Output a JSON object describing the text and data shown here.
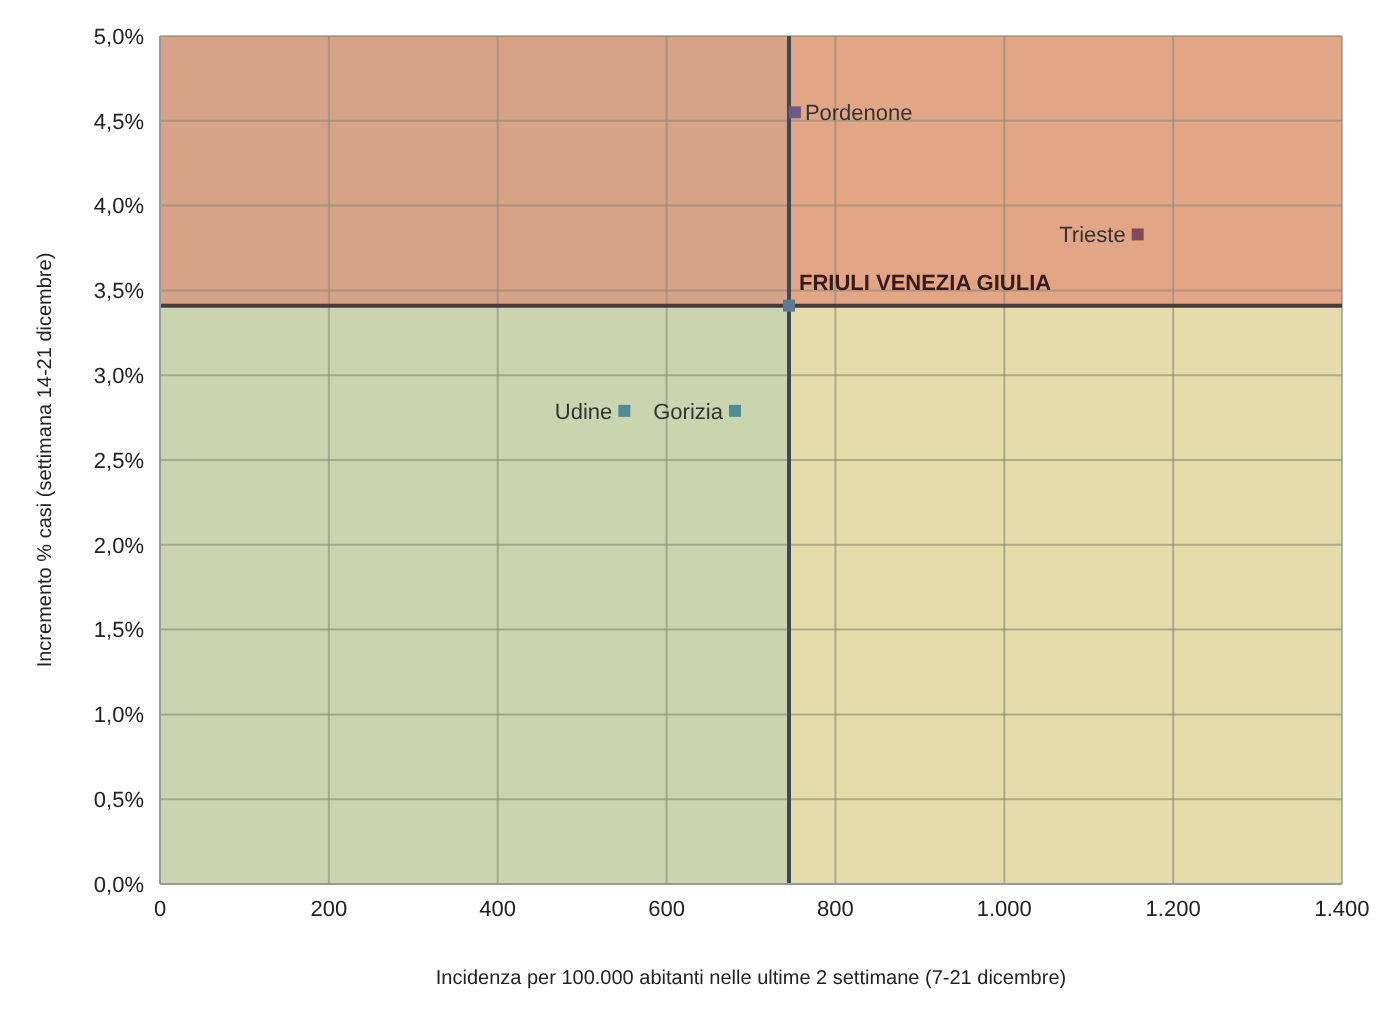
{
  "chart_data": {
    "type": "scatter",
    "xlabel": "Incidenza per 100.000 abitanti nelle ultime 2 settimane (7-21 dicembre)",
    "ylabel": "Incremento % casi (settimana 14-21 dicembre)",
    "series": [
      {
        "name": "FRIULI VENEZIA GIULIA",
        "color": "#5a7a96",
        "x": [
          745
        ],
        "values": [
          3.41
        ]
      },
      {
        "name": "Pordenone",
        "color": "#6e5a86",
        "x": [
          752
        ],
        "values": [
          4.55
        ]
      },
      {
        "name": "Trieste",
        "color": "#7e4a5c",
        "x": [
          1158
        ],
        "values": [
          3.83
        ]
      },
      {
        "name": "Udine",
        "color": "#4f8a98",
        "x": [
          550
        ],
        "values": [
          2.79
        ]
      },
      {
        "name": "Gorizia",
        "color": "#4f8a98",
        "x": [
          681
        ],
        "values": [
          2.79
        ]
      }
    ],
    "xlim": [
      0,
      1400
    ],
    "xticks": [
      0,
      200,
      400,
      600,
      800,
      {
        "value": 1000,
        "label": "1.000"
      },
      {
        "value": 1200,
        "label": "1.200"
      },
      {
        "value": 1400,
        "label": "1.400"
      }
    ],
    "ylim": [
      0,
      5
    ],
    "yticks": [
      {
        "value": 0,
        "label": "0,0%"
      },
      {
        "value": 0.5,
        "label": "0,5%"
      },
      {
        "value": 1,
        "label": "1,0%"
      },
      {
        "value": 1.5,
        "label": "1,5%"
      },
      {
        "value": 2,
        "label": "2,0%"
      },
      {
        "value": 2.5,
        "label": "2,5%"
      },
      {
        "value": 3,
        "label": "3,0%"
      },
      {
        "value": 3.5,
        "label": "3,5%"
      },
      {
        "value": 4,
        "label": "4,0%"
      },
      {
        "value": 4.5,
        "label": "4,5%"
      },
      {
        "value": 5,
        "label": "5,0%"
      }
    ],
    "ref_lines": [
      {
        "axis": "x",
        "value": 745,
        "color": "#3a4a5a"
      },
      {
        "axis": "y",
        "value": 3.41,
        "color": "#4a3a3a"
      }
    ],
    "bands": [
      {
        "axis": "x",
        "from": 0,
        "to": 745,
        "color": "#cad5b0"
      },
      {
        "axis": "x",
        "from": 745,
        "to": 1400,
        "color": "#e4ddab"
      },
      {
        "axis": "y",
        "from": 3.41,
        "to": 5,
        "color": "#e07868"
      }
    ],
    "grid": true,
    "marker": "square"
  }
}
